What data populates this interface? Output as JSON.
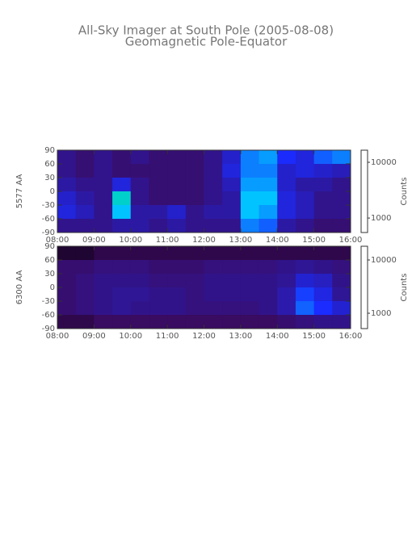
{
  "chart_data": [
    {
      "type": "heatmap",
      "title": "All-Sky Imager at South Pole (2005-08-08)",
      "subtitle": "Geomagnetic Pole-Equator",
      "ylabel": "5577 AA",
      "color_label": "Counts",
      "color_scale": "log",
      "xbins": [
        8,
        8.5,
        9,
        9.5,
        10,
        10.5,
        11,
        11.5,
        12,
        12.5,
        13,
        13.5,
        14,
        14.5,
        15,
        15.5,
        16
      ],
      "ybins": [
        90,
        60,
        30,
        0,
        -30,
        -60,
        -90
      ],
      "z": [
        [
          900,
          800,
          900,
          800,
          900,
          800,
          800,
          800,
          900,
          1200,
          2000,
          2200,
          1500,
          1300,
          1800,
          2000
        ],
        [
          900,
          800,
          900,
          800,
          800,
          800,
          800,
          800,
          900,
          1300,
          2000,
          2000,
          1200,
          1300,
          1200,
          1100
        ],
        [
          1000,
          900,
          900,
          1300,
          900,
          800,
          800,
          800,
          900,
          1100,
          2200,
          2200,
          1200,
          1000,
          1000,
          900
        ],
        [
          1200,
          1000,
          900,
          3000,
          900,
          800,
          800,
          800,
          900,
          1000,
          2500,
          2500,
          1300,
          1100,
          900,
          900
        ],
        [
          1300,
          1100,
          900,
          2500,
          1000,
          1000,
          1200,
          900,
          1000,
          1000,
          2500,
          2200,
          1300,
          1100,
          900,
          900
        ],
        [
          900,
          900,
          900,
          1000,
          1000,
          900,
          1000,
          900,
          900,
          900,
          2000,
          1800,
          1000,
          900,
          800,
          800
        ]
      ],
      "xlim": [
        8,
        16
      ],
      "xticks": [
        {
          "value": 8,
          "label": "08:00"
        },
        {
          "value": 9,
          "label": "09:00"
        },
        {
          "value": 10,
          "label": "10:00"
        },
        {
          "value": 11,
          "label": "11:00"
        },
        {
          "value": 12,
          "label": "12:00"
        },
        {
          "value": 13,
          "label": "13:00"
        },
        {
          "value": 14,
          "label": "14:00"
        },
        {
          "value": 15,
          "label": "15:00"
        },
        {
          "value": 16,
          "label": "16:00"
        }
      ],
      "ylim": [
        -90,
        90
      ],
      "yticks": [
        90,
        60,
        30,
        0,
        -30,
        -60,
        -90
      ],
      "clim": [
        550,
        16500
      ],
      "cticks": [
        10000,
        1000
      ]
    },
    {
      "type": "heatmap",
      "ylabel": "6300 AA",
      "color_label": "Counts",
      "color_scale": "log",
      "xbins": [
        8,
        8.5,
        9,
        9.5,
        10,
        10.5,
        11,
        11.5,
        12,
        12.5,
        13,
        13.5,
        14,
        14.5,
        15,
        15.5,
        16
      ],
      "ybins": [
        90,
        60,
        30,
        0,
        -30,
        -60,
        -90
      ],
      "z": [
        [
          600,
          600,
          650,
          650,
          650,
          650,
          650,
          650,
          650,
          650,
          650,
          650,
          650,
          650,
          650,
          650
        ],
        [
          750,
          750,
          800,
          800,
          800,
          750,
          750,
          750,
          800,
          800,
          800,
          800,
          850,
          900,
          850,
          800
        ],
        [
          750,
          800,
          850,
          850,
          850,
          800,
          800,
          800,
          850,
          850,
          850,
          850,
          900,
          1200,
          1100,
          850
        ],
        [
          750,
          800,
          850,
          900,
          900,
          850,
          850,
          800,
          850,
          850,
          850,
          850,
          1000,
          1600,
          1300,
          900
        ],
        [
          750,
          800,
          850,
          900,
          850,
          850,
          850,
          800,
          800,
          800,
          800,
          850,
          1000,
          1800,
          1500,
          1200
        ],
        [
          650,
          650,
          700,
          700,
          700,
          700,
          700,
          700,
          700,
          700,
          700,
          700,
          750,
          800,
          850,
          850
        ]
      ],
      "xlim": [
        8,
        16
      ],
      "xticks": [
        {
          "value": 8,
          "label": "08:00"
        },
        {
          "value": 9,
          "label": "09:00"
        },
        {
          "value": 10,
          "label": "10:00"
        },
        {
          "value": 11,
          "label": "11:00"
        },
        {
          "value": 12,
          "label": "12:00"
        },
        {
          "value": 13,
          "label": "13:00"
        },
        {
          "value": 14,
          "label": "14:00"
        },
        {
          "value": 15,
          "label": "15:00"
        },
        {
          "value": 16,
          "label": "16:00"
        }
      ],
      "ylim": [
        -90,
        90
      ],
      "yticks": [
        90,
        60,
        30,
        0,
        -30,
        -60,
        -90
      ],
      "clim": [
        515,
        18100
      ],
      "cticks": [
        10000,
        1000
      ]
    }
  ]
}
